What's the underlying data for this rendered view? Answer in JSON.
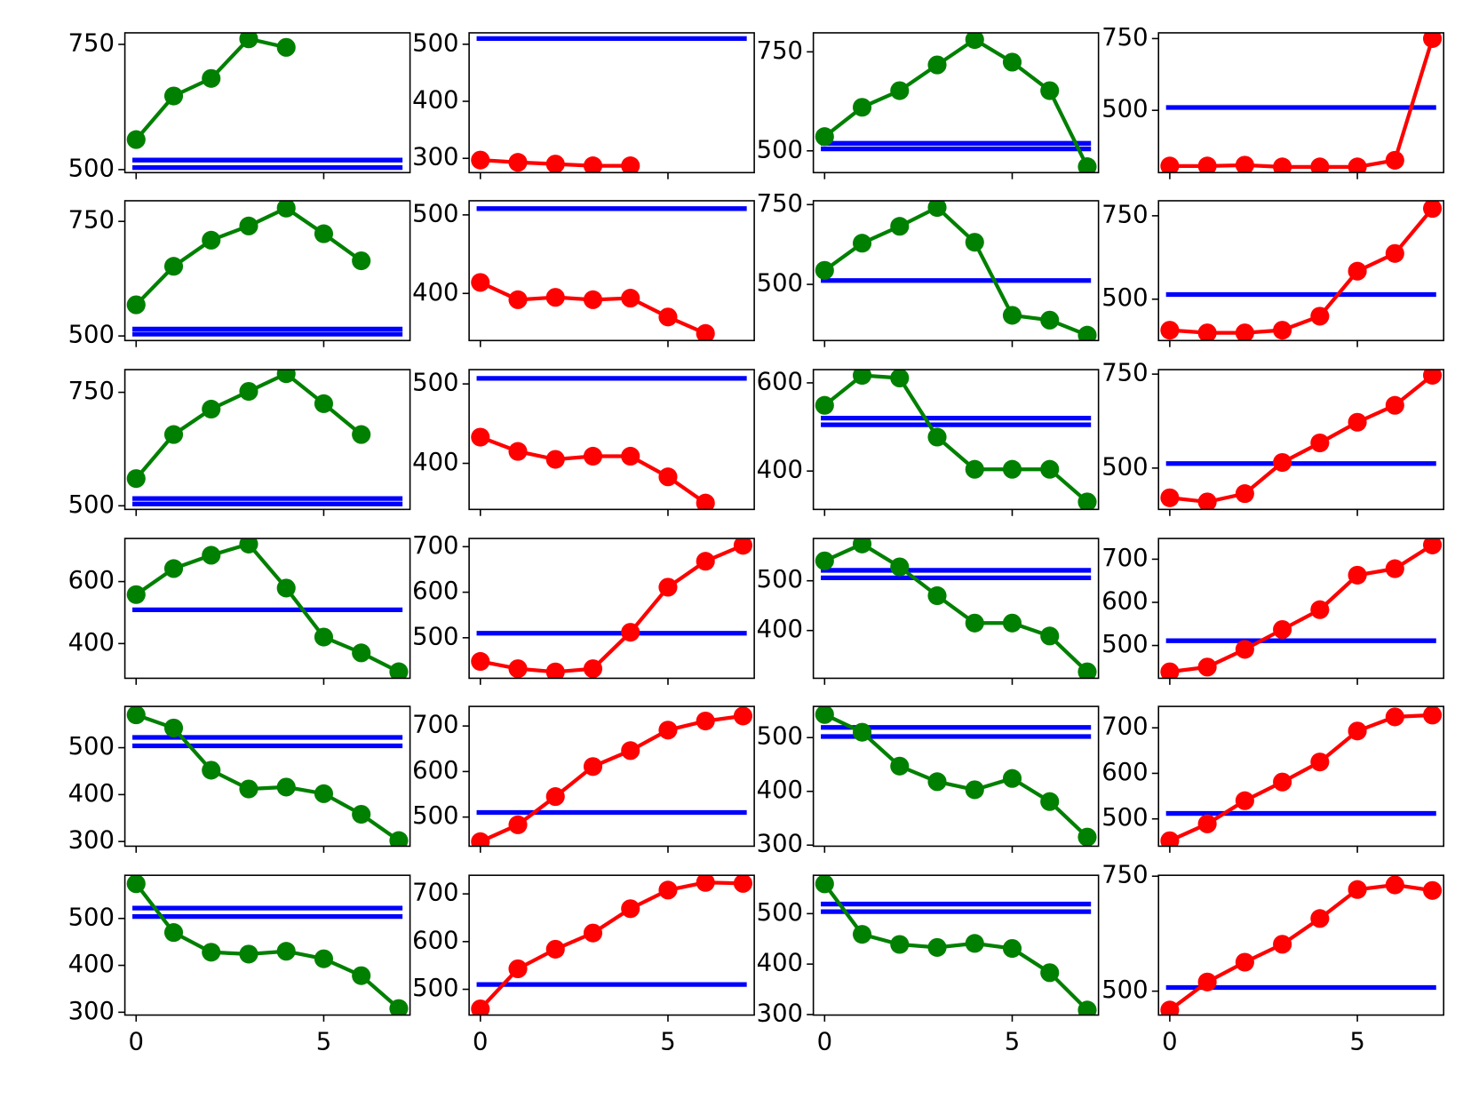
{
  "chart_data": [
    {
      "type": "line",
      "xlim": [
        -0.3,
        7.3
      ],
      "xticks": [
        0,
        5
      ],
      "show_xticklabels": false,
      "ylim": [
        494,
        773
      ],
      "yticks": [
        500,
        750
      ],
      "series": [
        {
          "color": "#008000",
          "values": [
            560,
            647,
            682,
            761,
            744
          ]
        }
      ],
      "hlines": [
        504,
        519
      ],
      "hline_color": "#0000ff"
    },
    {
      "type": "line",
      "xlim": [
        -0.3,
        7.3
      ],
      "xticks": [
        0,
        5
      ],
      "show_xticklabels": false,
      "ylim": [
        275,
        520
      ],
      "yticks": [
        300,
        400,
        500
      ],
      "series": [
        {
          "color": "#ff0000",
          "values": [
            297,
            293,
            290,
            287,
            287
          ]
        }
      ],
      "hlines": [
        510
      ],
      "hline_color": "#0000ff"
    },
    {
      "type": "line",
      "xlim": [
        -0.3,
        7.3
      ],
      "xticks": [
        0,
        5
      ],
      "show_xticklabels": false,
      "ylim": [
        445,
        798
      ],
      "yticks": [
        500,
        750
      ],
      "series": [
        {
          "color": "#008000",
          "values": [
            536,
            610,
            652,
            717,
            781,
            724,
            652,
            460
          ]
        }
      ],
      "hlines": [
        505,
        519
      ],
      "hline_color": "#0000ff"
    },
    {
      "type": "line",
      "xlim": [
        -0.3,
        7.3
      ],
      "xticks": [
        0,
        5
      ],
      "show_xticklabels": false,
      "ylim": [
        283,
        770
      ],
      "yticks": [
        500,
        750
      ],
      "series": [
        {
          "color": "#ff0000",
          "values": [
            306,
            306,
            309,
            303,
            303,
            303,
            326,
            750
          ]
        }
      ],
      "hlines": [
        510
      ],
      "hline_color": "#0000ff"
    },
    {
      "type": "line",
      "xlim": [
        -0.3,
        7.3
      ],
      "xticks": [
        0,
        5
      ],
      "show_xticklabels": false,
      "ylim": [
        490,
        795
      ],
      "yticks": [
        500,
        750
      ],
      "series": [
        {
          "color": "#008000",
          "values": [
            568,
            652,
            709,
            740,
            779,
            723,
            664
          ]
        }
      ],
      "hlines": [
        504,
        515
      ],
      "hline_color": "#0000ff"
    },
    {
      "type": "line",
      "xlim": [
        -0.3,
        7.3
      ],
      "xticks": [
        0,
        5
      ],
      "show_xticklabels": false,
      "ylim": [
        340,
        518
      ],
      "yticks": [
        400,
        500
      ],
      "series": [
        {
          "color": "#ff0000",
          "values": [
            414,
            392,
            395,
            392,
            394,
            370,
            349
          ]
        }
      ],
      "hlines": [
        508
      ],
      "hline_color": "#0000ff"
    },
    {
      "type": "line",
      "xlim": [
        -0.3,
        7.3
      ],
      "xticks": [
        0,
        5
      ],
      "show_xticklabels": false,
      "ylim": [
        324,
        762
      ],
      "yticks": [
        500,
        750
      ],
      "series": [
        {
          "color": "#008000",
          "values": [
            544,
            629,
            682,
            741,
            632,
            403,
            388,
            341
          ]
        }
      ],
      "hlines": [
        512
      ],
      "hline_color": "#0000ff"
    },
    {
      "type": "line",
      "xlim": [
        -0.3,
        7.3
      ],
      "xticks": [
        0,
        5
      ],
      "show_xticklabels": false,
      "ylim": [
        376,
        795
      ],
      "yticks": [
        500,
        750
      ],
      "series": [
        {
          "color": "#ff0000",
          "values": [
            407,
            399,
            399,
            407,
            449,
            584,
            637,
            772
          ]
        }
      ],
      "hlines": [
        514
      ],
      "hline_color": "#0000ff"
    },
    {
      "type": "line",
      "xlim": [
        -0.3,
        7.3
      ],
      "xticks": [
        0,
        5
      ],
      "show_xticklabels": false,
      "ylim": [
        492,
        800
      ],
      "yticks": [
        500,
        750
      ],
      "series": [
        {
          "color": "#008000",
          "values": [
            560,
            657,
            713,
            752,
            791,
            725,
            657
          ]
        }
      ],
      "hlines": [
        504,
        516
      ],
      "hline_color": "#0000ff"
    },
    {
      "type": "line",
      "xlim": [
        -0.3,
        7.3
      ],
      "xticks": [
        0,
        5
      ],
      "show_xticklabels": false,
      "ylim": [
        342,
        518
      ],
      "yticks": [
        400,
        500
      ],
      "series": [
        {
          "color": "#ff0000",
          "values": [
            433,
            415,
            405,
            409,
            409,
            383,
            350
          ]
        }
      ],
      "hlines": [
        507
      ],
      "hline_color": "#0000ff"
    },
    {
      "type": "line",
      "xlim": [
        -0.3,
        7.3
      ],
      "xticks": [
        0,
        5
      ],
      "show_xticklabels": false,
      "ylim": [
        313,
        630
      ],
      "yticks": [
        400,
        600
      ],
      "series": [
        {
          "color": "#008000",
          "values": [
            549,
            617,
            611,
            477,
            404,
            404,
            404,
            330
          ]
        }
      ],
      "hlines": [
        505,
        520
      ],
      "hline_color": "#0000ff"
    },
    {
      "type": "line",
      "xlim": [
        -0.3,
        7.3
      ],
      "xticks": [
        0,
        5
      ],
      "show_xticklabels": false,
      "ylim": [
        390,
        762
      ],
      "yticks": [
        500,
        750
      ],
      "series": [
        {
          "color": "#ff0000",
          "values": [
            421,
            410,
            432,
            515,
            567,
            622,
            667,
            747
          ]
        }
      ],
      "hlines": [
        512
      ],
      "hline_color": "#0000ff"
    },
    {
      "type": "line",
      "xlim": [
        -0.3,
        7.3
      ],
      "xticks": [
        0,
        5
      ],
      "show_xticklabels": false,
      "ylim": [
        288,
        739
      ],
      "yticks": [
        400,
        600
      ],
      "series": [
        {
          "color": "#008000",
          "values": [
            558,
            642,
            685,
            721,
            579,
            421,
            370,
            309
          ]
        }
      ],
      "hlines": [
        509
      ],
      "hline_color": "#0000ff"
    },
    {
      "type": "line",
      "xlim": [
        -0.3,
        7.3
      ],
      "xticks": [
        0,
        5
      ],
      "show_xticklabels": false,
      "ylim": [
        411,
        718
      ],
      "yticks": [
        500,
        600,
        700
      ],
      "series": [
        {
          "color": "#ff0000",
          "values": [
            448,
            432,
            425,
            432,
            512,
            611,
            668,
            703
          ]
        }
      ],
      "hlines": [
        510
      ],
      "hline_color": "#0000ff"
    },
    {
      "type": "line",
      "xlim": [
        -0.3,
        7.3
      ],
      "xticks": [
        0,
        5
      ],
      "show_xticklabels": false,
      "ylim": [
        304,
        585
      ],
      "yticks": [
        400,
        500
      ],
      "series": [
        {
          "color": "#008000",
          "values": [
            540,
            574,
            528,
            470,
            415,
            415,
            389,
            317
          ]
        }
      ],
      "hlines": [
        506,
        521
      ],
      "hline_color": "#0000ff"
    },
    {
      "type": "line",
      "xlim": [
        -0.3,
        7.3
      ],
      "xticks": [
        0,
        5
      ],
      "show_xticklabels": false,
      "ylim": [
        424,
        748
      ],
      "yticks": [
        500,
        600,
        700
      ],
      "series": [
        {
          "color": "#ff0000",
          "values": [
            439,
            450,
            491,
            537,
            583,
            663,
            678,
            733
          ]
        }
      ],
      "hlines": [
        511
      ],
      "hline_color": "#0000ff"
    },
    {
      "type": "line",
      "xlim": [
        -0.3,
        7.3
      ],
      "xticks": [
        0,
        5
      ],
      "show_xticklabels": false,
      "ylim": [
        290,
        588
      ],
      "yticks": [
        300,
        400,
        500
      ],
      "series": [
        {
          "color": "#008000",
          "values": [
            570,
            542,
            452,
            412,
            416,
            402,
            358,
            302
          ]
        }
      ],
      "hlines": [
        504,
        522
      ],
      "hline_color": "#0000ff"
    },
    {
      "type": "line",
      "xlim": [
        -0.3,
        7.3
      ],
      "xticks": [
        0,
        5
      ],
      "show_xticklabels": false,
      "ylim": [
        436,
        743
      ],
      "yticks": [
        500,
        600,
        700
      ],
      "series": [
        {
          "color": "#ff0000",
          "values": [
            446,
            483,
            545,
            611,
            646,
            691,
            711,
            722
          ]
        }
      ],
      "hlines": [
        510
      ],
      "hline_color": "#0000ff"
    },
    {
      "type": "line",
      "xlim": [
        -0.3,
        7.3
      ],
      "xticks": [
        0,
        5
      ],
      "show_xticklabels": false,
      "ylim": [
        298,
        558
      ],
      "yticks": [
        300,
        400,
        500
      ],
      "series": [
        {
          "color": "#008000",
          "values": [
            543,
            510,
            447,
            418,
            403,
            424,
            381,
            315
          ]
        }
      ],
      "hlines": [
        502,
        519
      ],
      "hline_color": "#0000ff"
    },
    {
      "type": "line",
      "xlim": [
        -0.3,
        7.3
      ],
      "xticks": [
        0,
        5
      ],
      "show_xticklabels": false,
      "ylim": [
        440,
        747
      ],
      "yticks": [
        500,
        600,
        700
      ],
      "series": [
        {
          "color": "#ff0000",
          "values": [
            452,
            489,
            540,
            581,
            625,
            693,
            724,
            728
          ]
        }
      ],
      "hlines": [
        512
      ],
      "hline_color": "#0000ff"
    },
    {
      "type": "line",
      "xlim": [
        -0.3,
        7.3
      ],
      "xticks": [
        0,
        5
      ],
      "show_xticklabels": true,
      "ylim": [
        294,
        592
      ],
      "yticks": [
        300,
        400,
        500
      ],
      "series": [
        {
          "color": "#008000",
          "values": [
            574,
            470,
            428,
            424,
            430,
            414,
            378,
            308
          ]
        }
      ],
      "hlines": [
        504,
        522
      ],
      "hline_color": "#0000ff"
    },
    {
      "type": "line",
      "xlim": [
        -0.3,
        7.3
      ],
      "xticks": [
        0,
        5
      ],
      "show_xticklabels": true,
      "ylim": [
        446,
        739
      ],
      "yticks": [
        500,
        600,
        700
      ],
      "series": [
        {
          "color": "#ff0000",
          "values": [
            459,
            543,
            584,
            618,
            669,
            708,
            724,
            722
          ]
        }
      ],
      "hlines": [
        510
      ],
      "hline_color": "#0000ff"
    },
    {
      "type": "line",
      "xlim": [
        -0.3,
        7.3
      ],
      "xticks": [
        0,
        5
      ],
      "show_xticklabels": true,
      "ylim": [
        299,
        576
      ],
      "yticks": [
        300,
        400,
        500
      ],
      "series": [
        {
          "color": "#008000",
          "values": [
            559,
            459,
            439,
            433,
            441,
            431,
            383,
            309
          ]
        }
      ],
      "hlines": [
        504,
        519
      ],
      "hline_color": "#0000ff"
    },
    {
      "type": "line",
      "xlim": [
        -0.3,
        7.3
      ],
      "xticks": [
        0,
        5
      ],
      "show_xticklabels": true,
      "ylim": [
        448,
        752
      ],
      "yticks": [
        500,
        750
      ],
      "series": [
        {
          "color": "#ff0000",
          "values": [
            459,
            520,
            563,
            602,
            658,
            721,
            731,
            719
          ]
        }
      ],
      "hlines": [
        508
      ],
      "hline_color": "#0000ff"
    }
  ]
}
